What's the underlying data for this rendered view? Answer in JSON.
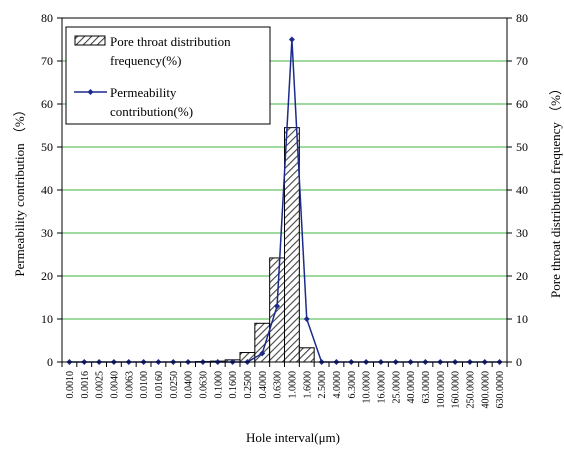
{
  "chart_data": {
    "type": "bar",
    "categories": [
      "0.0010",
      "0.0016",
      "0.0025",
      "0.0040",
      "0.0063",
      "0.0100",
      "0.0160",
      "0.0250",
      "0.0400",
      "0.0630",
      "0.1000",
      "0.1600",
      "0.2500",
      "0.4000",
      "0.6300",
      "1.0000",
      "1.6000",
      "2.5000",
      "4.0000",
      "6.3000",
      "10.0000",
      "16.0000",
      "25.0000",
      "40.0000",
      "63.0000",
      "100.0000",
      "160.0000",
      "250.0000",
      "400.0000",
      "630.0000"
    ],
    "series": [
      {
        "name": "Pore throat distribution frequency(%)",
        "kind": "bar",
        "axis": "right",
        "values": [
          0,
          0,
          0,
          0,
          0,
          0,
          0,
          0,
          0,
          0.1,
          0.2,
          0.5,
          2.2,
          9.0,
          24.2,
          54.5,
          3.3,
          0,
          0,
          0,
          0,
          0,
          0,
          0,
          0,
          0,
          0,
          0,
          0,
          0
        ]
      },
      {
        "name": "Permeability contribution(%)",
        "kind": "line",
        "axis": "left",
        "values": [
          0,
          0,
          0,
          0,
          0,
          0,
          0,
          0,
          0,
          0,
          0,
          0,
          0,
          2,
          13,
          75,
          10,
          0,
          0,
          0,
          0,
          0,
          0,
          0,
          0,
          0,
          0,
          0,
          0,
          0
        ]
      }
    ],
    "xlabel": "Hole interval(μm)",
    "ylabel_left": "Permeability contribution （%）",
    "ylabel_right": "Pore throat distribution frequency （%）",
    "ylim": [
      0,
      80
    ],
    "yticks": [
      0,
      10,
      20,
      30,
      40,
      50,
      60,
      70,
      80
    ],
    "grid": true,
    "legend_position": "top-left",
    "colors": {
      "line": "#1c2a8c",
      "grid": "#3cb43c",
      "bar_fill": "#d9d9d9",
      "bar_hatch": "#333333"
    }
  }
}
